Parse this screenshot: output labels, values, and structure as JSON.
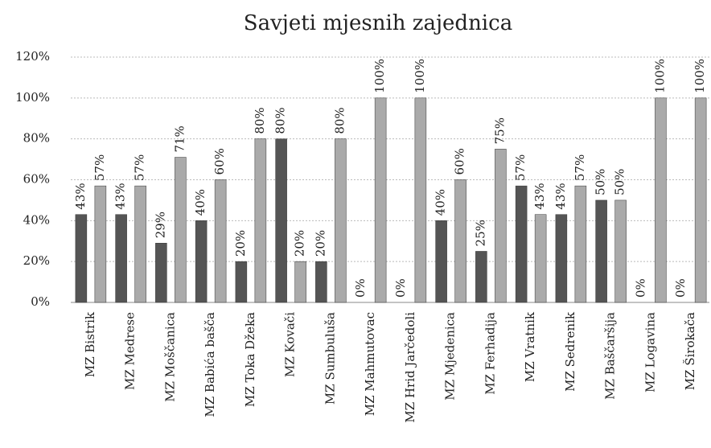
{
  "chart_data": {
    "type": "bar",
    "title": "Savjeti mjesnih zajednica",
    "categories": [
      "MZ Bistrik",
      "MZ Medrese",
      "MZ Moščanica",
      "MZ Babića bašča",
      "MZ Toka Džeka",
      "MZ Kovači",
      "MZ Sumbuluša",
      "MZ Mahmutovac",
      "MZ Hrid Jarčedoli",
      "MZ Mjedenica",
      "MZ Ferhadija",
      "MZ Vratnik",
      "MZ Sedrenik",
      "MZ Baščaršija",
      "MZ Logavina",
      "MZ Širokača"
    ],
    "series": [
      {
        "color": "#555555",
        "values": [
          43,
          43,
          29,
          40,
          20,
          80,
          20,
          0,
          0,
          40,
          25,
          57,
          43,
          50,
          0,
          0
        ],
        "value_labels": [
          "43%",
          "43%",
          "29%",
          "40%",
          "20%",
          "80%",
          "20%",
          "0%",
          "0%",
          "40%",
          "25%",
          "57%",
          "43%",
          "50%",
          "0%",
          "0%"
        ]
      },
      {
        "color": "#aaaaaa",
        "values": [
          57,
          57,
          71,
          60,
          80,
          20,
          80,
          100,
          100,
          60,
          75,
          43,
          57,
          50,
          100,
          100
        ],
        "value_labels": [
          "57%",
          "57%",
          "71%",
          "60%",
          "80%",
          "20%",
          "80%",
          "100%",
          "100%",
          "60%",
          "75%",
          "43%",
          "57%",
          "50%",
          "100%",
          "100%"
        ]
      }
    ],
    "ylim": [
      0,
      120
    ],
    "yticks": [
      {
        "value": 0,
        "label": "0%"
      },
      {
        "value": 20,
        "label": "20%"
      },
      {
        "value": 40,
        "label": "40%"
      },
      {
        "value": 60,
        "label": "60%"
      },
      {
        "value": 80,
        "label": "80%"
      },
      {
        "value": 100,
        "label": "100%"
      },
      {
        "value": 120,
        "label": "120%"
      }
    ],
    "grid": true
  }
}
